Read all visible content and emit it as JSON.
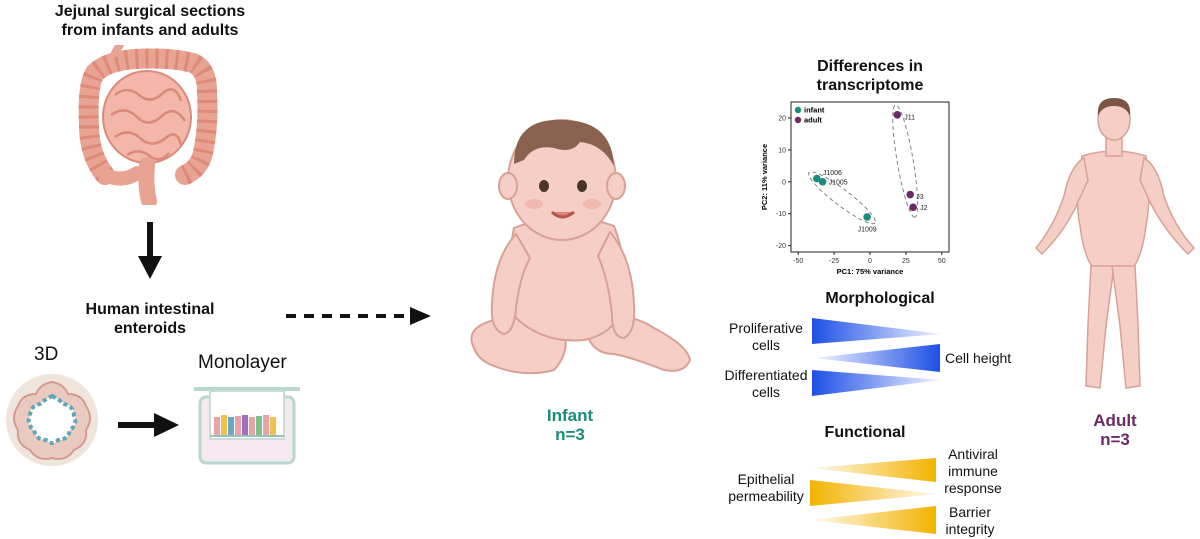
{
  "left": {
    "source_title_line1": "Jejunal surgical sections",
    "source_title_line2": "from infants and adults",
    "enteroids_line1": "Human intestinal",
    "enteroids_line2": "enteroids",
    "label_3d": "3D",
    "label_monolayer": "Monolayer"
  },
  "infant": {
    "label": "Infant",
    "n": "n=3",
    "color": "#1a8c7a"
  },
  "adult": {
    "label": "Adult",
    "n": "n=3",
    "color": "#6b2a66"
  },
  "transcriptome": {
    "title_line1": "Differences in",
    "title_line2": "transcriptome",
    "chart_data": {
      "type": "scatter",
      "xlabel": "PC1: 75% variance",
      "ylabel": "PC2: 11% variance",
      "xlim": [
        -55,
        55
      ],
      "ylim": [
        -22,
        25
      ],
      "x_ticks": [
        -50,
        -25,
        0,
        25,
        50
      ],
      "y_ticks": [
        -20,
        -10,
        0,
        10,
        20
      ],
      "legend_position": "top-left",
      "series": [
        {
          "name": "infant",
          "color": "#1a8c7a",
          "points": [
            {
              "label": "J1006",
              "x": -37,
              "y": 1
            },
            {
              "label": "J1005",
              "x": -33,
              "y": 0
            },
            {
              "label": "J1009",
              "x": -2,
              "y": -11
            }
          ]
        },
        {
          "name": "adult",
          "color": "#6b2a66",
          "points": [
            {
              "label": "J11",
              "x": 19,
              "y": 21
            },
            {
              "label": "J3",
              "x": 28,
              "y": -4
            },
            {
              "label": "J2",
              "x": 30,
              "y": -8
            }
          ]
        }
      ]
    }
  },
  "morphological": {
    "title": "Morphological",
    "proliferative_line1": "Proliferative",
    "proliferative_line2": "cells",
    "differentiated_line1": "Differentiated",
    "differentiated_line2": "cells",
    "cell_height": "Cell height",
    "color": "#2457e6"
  },
  "functional": {
    "title": "Functional",
    "epithelial_line1": "Epithelial",
    "epithelial_line2": "permeability",
    "antiviral_line1": "Antiviral",
    "antiviral_line2": "immune",
    "antiviral_line3": "response",
    "barrier_line1": "Barrier",
    "barrier_line2": "integrity",
    "color": "#f3b800"
  }
}
